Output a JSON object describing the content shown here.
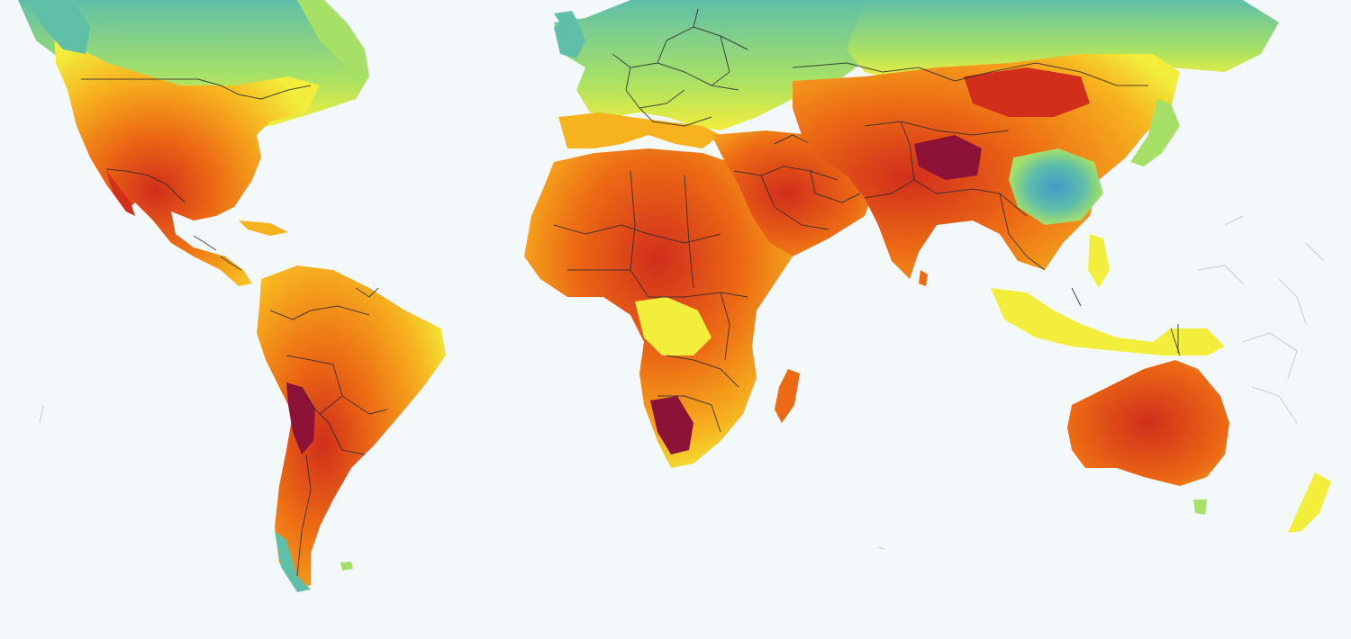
{
  "map": {
    "type": "choropleth-raster",
    "projection": "equirectangular",
    "background_color": "#f3f8fb",
    "palette": {
      "very_low": "#3f9ac9",
      "low": "#5fbfa8",
      "medium_low": "#a6e067",
      "medium": "#f2ee3b",
      "medium_high": "#f7b21f",
      "high": "#ec6a14",
      "very_high": "#d12e1c",
      "extreme": "#8d1237"
    },
    "border_color": "#2b2b33",
    "legend": null,
    "title": ""
  }
}
